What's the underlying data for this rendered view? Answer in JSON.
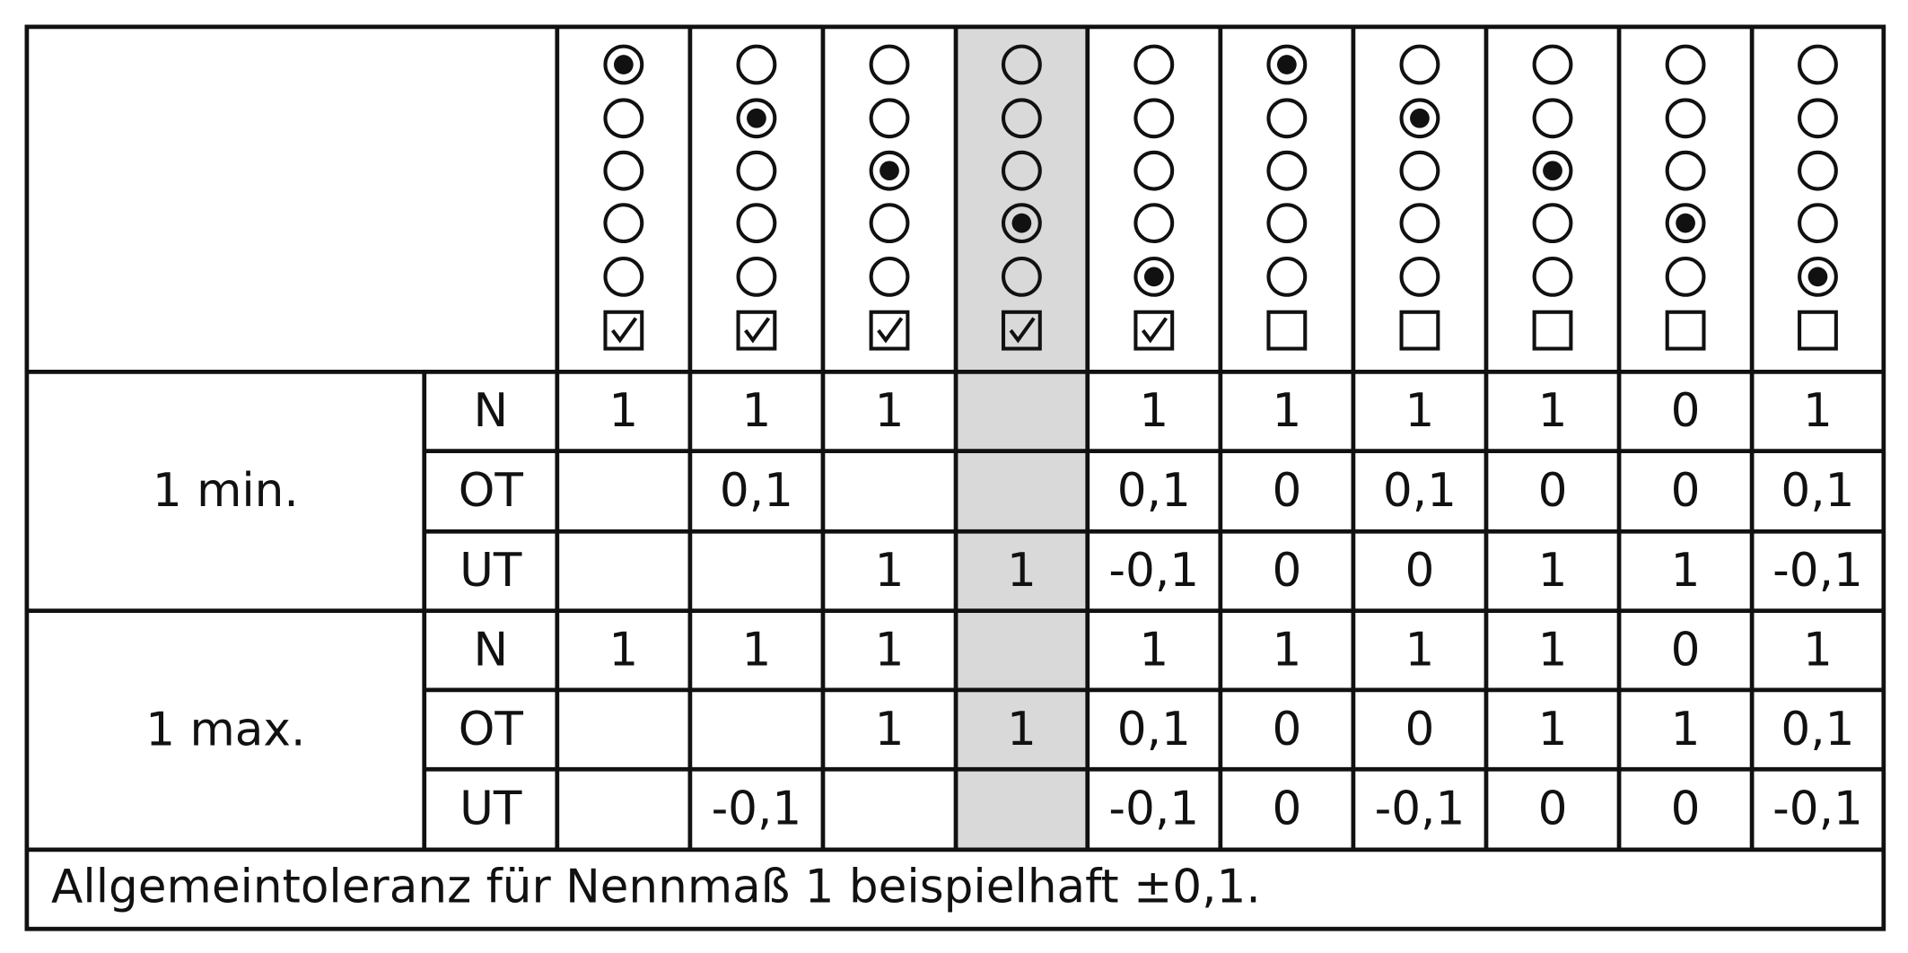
{
  "highlight_column": 3,
  "header": {
    "columns": [
      {
        "selected": 0,
        "checked": true
      },
      {
        "selected": 1,
        "checked": true
      },
      {
        "selected": 2,
        "checked": true
      },
      {
        "selected": 3,
        "checked": true
      },
      {
        "selected": 4,
        "checked": true
      },
      {
        "selected": 0,
        "checked": false
      },
      {
        "selected": 1,
        "checked": false
      },
      {
        "selected": 2,
        "checked": false
      },
      {
        "selected": 3,
        "checked": false
      },
      {
        "selected": 4,
        "checked": false
      }
    ]
  },
  "groups": [
    {
      "label": "1 min.",
      "rows": [
        {
          "label": "N",
          "cells": [
            "1",
            "1",
            "1",
            null,
            "1",
            "1",
            "1",
            "1",
            "0",
            "1"
          ]
        },
        {
          "label": "OT",
          "cells": [
            null,
            "0,1",
            null,
            null,
            "0,1",
            "0",
            "0,1",
            "0",
            "0",
            "0,1"
          ]
        },
        {
          "label": "UT",
          "cells": [
            null,
            null,
            "1",
            "1",
            "-0,1",
            "0",
            "0",
            "1",
            "1",
            "-0,1"
          ]
        }
      ]
    },
    {
      "label": "1 max.",
      "rows": [
        {
          "label": "N",
          "cells": [
            "1",
            "1",
            "1",
            null,
            "1",
            "1",
            "1",
            "1",
            "0",
            "1"
          ]
        },
        {
          "label": "OT",
          "cells": [
            null,
            null,
            "1",
            "1",
            "0,1",
            "0",
            "0",
            "1",
            "1",
            "0,1"
          ]
        },
        {
          "label": "UT",
          "cells": [
            null,
            "-0,1",
            null,
            null,
            "-0,1",
            "0",
            "-0,1",
            "0",
            "0",
            "-0,1"
          ]
        }
      ]
    }
  ],
  "footer": "Allgemeintoleranz für Nennmaß 1 beispielhaft ±0,1."
}
